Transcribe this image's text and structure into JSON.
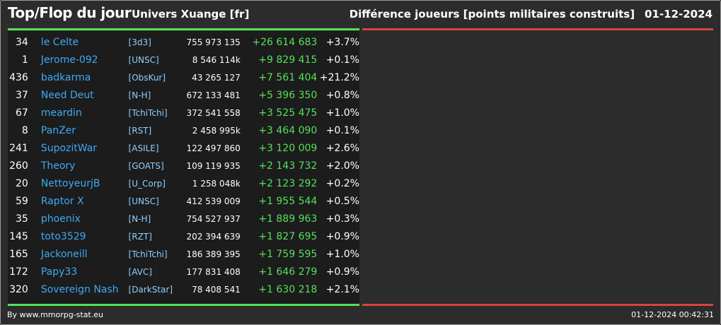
{
  "header": {
    "title": "Top/Flop du jour",
    "universe": "Univers Xuange [fr]",
    "metric": "Différence joueurs [points militaires construits]",
    "date": "01-12-2024"
  },
  "rows": [
    {
      "rank": "34",
      "name": "le Celte",
      "alliance": "[3d3]",
      "points": "755 973 135",
      "diff": "+26 614 683",
      "pct": "+3.7%"
    },
    {
      "rank": "1",
      "name": "Jerome-092",
      "alliance": "[UNSC]",
      "points": "8 546 114k",
      "diff": "+9 829 415",
      "pct": "+0.1%"
    },
    {
      "rank": "436",
      "name": "badkarma",
      "alliance": "[ObsKur]",
      "points": "43 265 127",
      "diff": "+7 561 404",
      "pct": "+21.2%"
    },
    {
      "rank": "37",
      "name": "Need Deut",
      "alliance": "[N-H]",
      "points": "672 133 481",
      "diff": "+5 396 350",
      "pct": "+0.8%"
    },
    {
      "rank": "67",
      "name": "meardin",
      "alliance": "[TchiTchi]",
      "points": "372 541 558",
      "diff": "+3 525 475",
      "pct": "+1.0%"
    },
    {
      "rank": "8",
      "name": "PanZer",
      "alliance": "[RST]",
      "points": "2 458 995k",
      "diff": "+3 464 090",
      "pct": "+0.1%"
    },
    {
      "rank": "241",
      "name": "SupozitWar",
      "alliance": "[ASILE]",
      "points": "122 497 860",
      "diff": "+3 120 009",
      "pct": "+2.6%"
    },
    {
      "rank": "260",
      "name": "Theory",
      "alliance": "[GOATS]",
      "points": "109 119 935",
      "diff": "+2 143 732",
      "pct": "+2.0%"
    },
    {
      "rank": "20",
      "name": "NettoyeurjB",
      "alliance": "[U_Corp]",
      "points": "1 258 048k",
      "diff": "+2 123 292",
      "pct": "+0.2%"
    },
    {
      "rank": "59",
      "name": "Raptor X",
      "alliance": "[UNSC]",
      "points": "412 539 009",
      "diff": "+1 955 544",
      "pct": "+0.5%"
    },
    {
      "rank": "35",
      "name": "phoenix",
      "alliance": "[N-H]",
      "points": "754 527 937",
      "diff": "+1 889 963",
      "pct": "+0.3%"
    },
    {
      "rank": "145",
      "name": "toto3529",
      "alliance": "[RZT]",
      "points": "202 394 639",
      "diff": "+1 827 695",
      "pct": "+0.9%"
    },
    {
      "rank": "165",
      "name": "Jackoneill",
      "alliance": "[TchiTchi]",
      "points": "186 389 395",
      "diff": "+1 759 595",
      "pct": "+1.0%"
    },
    {
      "rank": "172",
      "name": "Papy33",
      "alliance": "[AVC]",
      "points": "177 831 408",
      "diff": "+1 646 279",
      "pct": "+0.9%"
    },
    {
      "rank": "320",
      "name": "Sovereign Nash",
      "alliance": "[DarkStar]",
      "points": "78 408 541",
      "diff": "+1 630 218",
      "pct": "+2.1%"
    }
  ],
  "footer": {
    "credit": "By www.mmorpg-stat.eu",
    "timestamp": "01-12-2024 00:42:31"
  },
  "colors": {
    "top_accent": "#55e05a",
    "flop_accent": "#d9433b",
    "player_link": "#3fa9f5",
    "alliance_link": "#8fd0ff"
  }
}
